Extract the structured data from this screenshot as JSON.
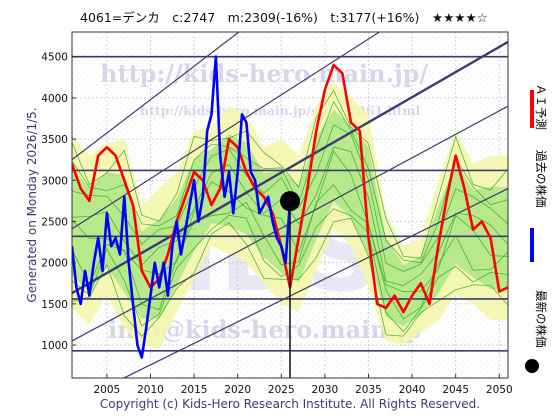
{
  "chart_data": {
    "type": "line",
    "title": "4061=デンカ　c:2747　m:2309(-16%)　t:3177(+16%)　★★★★☆",
    "ylabel": "Generated on Monday 2026/1/5.",
    "footer": "Copyright (c) Kids-Hero Research Institute. All Rights Reserved.",
    "watermarks": {
      "url_big": "http://kids-hero.main.jp/",
      "url_small": "http://kids-hero.main.jp/stock4061.html",
      "email": "info@kids-hero.main.jp",
      "brand": "KIDS"
    },
    "xlim": [
      2001,
      2051
    ],
    "ylim": [
      600,
      4800
    ],
    "x_ticks": [
      2005,
      2010,
      2015,
      2020,
      2025,
      2030,
      2035,
      2040,
      2045,
      2050
    ],
    "x_tick_labels": [
      "2005",
      "2010",
      "2015",
      "2020",
      "2025",
      "2030",
      "2035",
      "2040",
      "2045",
      "2050"
    ],
    "y_ticks": [
      1000,
      1500,
      2000,
      2500,
      3000,
      3500,
      4000,
      4500
    ],
    "y_tick_labels": [
      "1000",
      "1500",
      "2000",
      "2500",
      "3000",
      "3500",
      "4000",
      "4500"
    ],
    "grid": true,
    "current": {
      "x": 2026.0,
      "y": 2747
    },
    "horizontal_levels": [
      930,
      1560,
      2320,
      3120,
      4500
    ],
    "channel_lines": [
      {
        "x": [
          2001,
          2051
        ],
        "y": [
          290,
          2900
        ]
      },
      {
        "x": [
          2001,
          2051
        ],
        "y": [
          1050,
          3900
        ]
      },
      {
        "x": [
          2001,
          2051
        ],
        "y": [
          1630,
          4680
        ]
      },
      {
        "x": [
          2001,
          2051
        ],
        "y": [
          2410,
          5800
        ]
      },
      {
        "x": [
          2001,
          2051
        ],
        "y": [
          3250,
          7300
        ]
      }
    ],
    "series": [
      {
        "name": "過去の株価",
        "color": "#0000ff",
        "x": [
          2001,
          2001.5,
          2002,
          2002.5,
          2003,
          2003.5,
          2004,
          2004.5,
          2005,
          2005.5,
          2006,
          2006.5,
          2007,
          2007.5,
          2008,
          2008.5,
          2009,
          2009.5,
          2010,
          2010.5,
          2011,
          2011.5,
          2012,
          2012.5,
          2013,
          2013.5,
          2014,
          2014.5,
          2015,
          2015.5,
          2016,
          2016.5,
          2017,
          2017.5,
          2018,
          2018.5,
          2019,
          2019.5,
          2020,
          2020.5,
          2021,
          2021.5,
          2022,
          2022.5,
          2023,
          2023.5,
          2024,
          2024.5,
          2025,
          2025.5,
          2026
        ],
        "y": [
          2200,
          1700,
          1500,
          1900,
          1600,
          2000,
          2300,
          1900,
          2600,
          2200,
          2300,
          2100,
          2800,
          2000,
          1500,
          1000,
          850,
          1200,
          1600,
          2000,
          1700,
          2000,
          1600,
          2200,
          2500,
          2100,
          2400,
          2700,
          3000,
          2500,
          2800,
          3600,
          3800,
          4500,
          3300,
          2800,
          3100,
          2600,
          3100,
          3800,
          3700,
          3100,
          3000,
          2600,
          2700,
          2800,
          2500,
          2300,
          2200,
          2000,
          2747
        ]
      },
      {
        "name": "ＡＩ予測",
        "color": "#ff0000",
        "x": [
          2001,
          2002,
          2003,
          2004,
          2005,
          2006,
          2007,
          2008,
          2009,
          2010,
          2011,
          2012,
          2013,
          2014,
          2015,
          2016,
          2017,
          2018,
          2019,
          2020,
          2021,
          2022,
          2023,
          2024,
          2025,
          2026,
          2027,
          2028,
          2029,
          2030,
          2031,
          2032,
          2033,
          2034,
          2035,
          2036,
          2037,
          2038,
          2039,
          2040,
          2041,
          2042,
          2043,
          2044,
          2045,
          2046,
          2047,
          2048,
          2049,
          2050,
          2051
        ],
        "y": [
          3200,
          2900,
          2750,
          3300,
          3400,
          3300,
          3000,
          2700,
          1900,
          1700,
          1800,
          2100,
          2500,
          2800,
          3100,
          3000,
          2700,
          2900,
          3500,
          3400,
          3100,
          2900,
          2800,
          2600,
          2200,
          1700,
          2300,
          2900,
          3600,
          4100,
          4400,
          4300,
          3700,
          3600,
          2300,
          1500,
          1450,
          1600,
          1400,
          1600,
          1750,
          1500,
          2200,
          2800,
          3300,
          2900,
          2400,
          2500,
          2300,
          1650,
          1700
        ]
      }
    ],
    "prediction_band": {
      "x": [
        2001,
        2003,
        2005,
        2007,
        2009,
        2011,
        2013,
        2015,
        2017,
        2019,
        2021,
        2023,
        2025,
        2027,
        2029,
        2031,
        2033,
        2035,
        2037,
        2039,
        2041,
        2043,
        2045,
        2047,
        2049,
        2051
      ],
      "upper": [
        3550,
        3300,
        3450,
        3500,
        2700,
        2900,
        3100,
        3600,
        3650,
        3900,
        3800,
        3400,
        3500,
        3300,
        3900,
        4200,
        4000,
        3800,
        2600,
        2200,
        2300,
        3000,
        3600,
        3200,
        3300,
        3300
      ],
      "lower": [
        1450,
        1250,
        1600,
        1200,
        1000,
        950,
        1400,
        1800,
        2200,
        2100,
        2000,
        1750,
        1500,
        1400,
        1900,
        2400,
        2200,
        1700,
        1050,
        1000,
        1150,
        1300,
        1600,
        1500,
        1300,
        1300
      ]
    },
    "legend": [
      {
        "label": "ＡＩ予測",
        "color": "#ff0000",
        "kind": "line"
      },
      {
        "label": "過去の株価",
        "color": "#0000ff",
        "kind": "line"
      },
      {
        "label": "最新の株価",
        "color": "#000000",
        "kind": "dot"
      }
    ]
  }
}
